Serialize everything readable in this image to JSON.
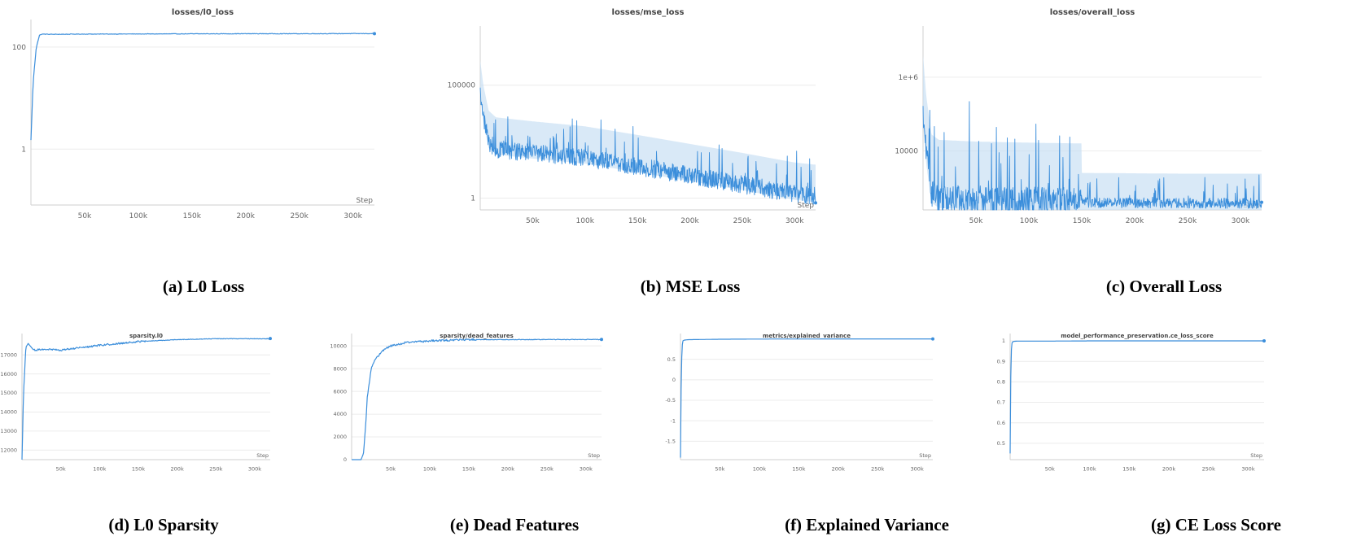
{
  "colors": {
    "line": "#3b8edb",
    "band": "#c9dff4",
    "axis": "#cfcfcf",
    "tick_text": "#666666"
  },
  "x_label": "Step",
  "x_ticks": [
    "50k",
    "100k",
    "150k",
    "200k",
    "250k",
    "300k"
  ],
  "captions": [
    "(a) L0 Loss",
    "(b) MSE Loss",
    "(c) Overall Loss",
    "(d) L0 Sparsity",
    "(e) Dead Features",
    "(f) Explained Variance",
    "(g) CE Loss Score"
  ],
  "chart_data": [
    {
      "type": "line",
      "title": "losses/l0_loss",
      "xlabel": "Step",
      "xlim": [
        0,
        320000
      ],
      "yscale": "log",
      "yticks": [
        1,
        100
      ],
      "ytick_labels": [
        "1",
        "100"
      ],
      "ylim": [
        0.08,
        300
      ],
      "series": [
        {
          "x": [
            0,
            2000,
            5000,
            8000,
            10000,
            20000,
            50000,
            100000,
            150000,
            200000,
            250000,
            300000,
            320000
          ],
          "y": [
            1.5,
            20,
            100,
            170,
            180,
            178,
            180,
            181,
            182,
            183,
            183,
            184,
            184
          ]
        }
      ]
    },
    {
      "type": "line",
      "title": "losses/mse_loss",
      "xlabel": "Step",
      "xlim": [
        0,
        320000
      ],
      "yscale": "log",
      "yticks": [
        1,
        100000
      ],
      "ytick_labels": [
        "1",
        "100000"
      ],
      "ylim": [
        0.3,
        30000000
      ],
      "band": true,
      "noisy": true,
      "series": [
        {
          "x": [
            0,
            3000,
            8000,
            15000,
            50000,
            100000,
            150000,
            200000,
            250000,
            300000,
            320000
          ],
          "y": [
            50000,
            4000,
            300,
            150,
            100,
            60,
            25,
            10,
            4,
            1.5,
            1.2
          ]
        }
      ]
    },
    {
      "type": "line",
      "title": "losses/overall_loss",
      "xlabel": "Step",
      "xlim": [
        0,
        320000
      ],
      "yscale": "log",
      "yticks": [
        10000,
        1000000
      ],
      "ytick_labels": [
        "10000",
        "1e+6"
      ],
      "ylim": [
        250,
        20000000
      ],
      "band": true,
      "noisy": true,
      "series": [
        {
          "x": [
            0,
            3000,
            8000,
            15000,
            50000,
            100000,
            150000,
            200000,
            250000,
            300000,
            320000
          ],
          "y": [
            100000,
            8000,
            700,
            500,
            450,
            420,
            400,
            390,
            380,
            380,
            380
          ]
        }
      ]
    },
    {
      "type": "line",
      "title": "sparsity.l0",
      "xlabel": "Step",
      "xlim": [
        0,
        320000
      ],
      "yscale": "linear",
      "yticks": [
        12000,
        13000,
        14000,
        15000,
        16000,
        17000
      ],
      "ytick_labels": [
        "12000",
        "13000",
        "14000",
        "15000",
        "16000",
        "17000"
      ],
      "ylim": [
        11500,
        17950
      ],
      "series": [
        {
          "x": [
            0,
            2000,
            5000,
            8000,
            15000,
            30000,
            50000,
            70000,
            100000,
            150000,
            200000,
            250000,
            300000,
            320000
          ],
          "y": [
            11500,
            15000,
            17400,
            17600,
            17250,
            17300,
            17250,
            17350,
            17500,
            17700,
            17800,
            17850,
            17850,
            17850
          ]
        }
      ]
    },
    {
      "type": "line",
      "title": "sparsity/dead_features",
      "xlabel": "Step",
      "xlim": [
        0,
        320000
      ],
      "yscale": "linear",
      "yticks": [
        0,
        2000,
        4000,
        6000,
        8000,
        10000
      ],
      "ytick_labels": [
        "0",
        "2000",
        "4000",
        "6000",
        "8000",
        "10000"
      ],
      "ylim": [
        0,
        10800
      ],
      "series": [
        {
          "x": [
            0,
            12000,
            15000,
            18000,
            20000,
            25000,
            30000,
            40000,
            50000,
            70000,
            100000,
            150000,
            200000,
            250000,
            300000,
            320000
          ],
          "y": [
            0,
            0,
            500,
            3000,
            5500,
            8000,
            8800,
            9600,
            10000,
            10300,
            10450,
            10550,
            10550,
            10560,
            10560,
            10560
          ]
        }
      ]
    },
    {
      "type": "line",
      "title": "metrics/explained_variance",
      "xlabel": "Step",
      "xlim": [
        0,
        320000
      ],
      "yscale": "linear",
      "yticks": [
        -1.5,
        -1,
        -0.5,
        0,
        0.5
      ],
      "ytick_labels": [
        "-1.5",
        "-1",
        "-0.5",
        "0",
        "0.5"
      ],
      "ylim": [
        -1.95,
        1.05
      ],
      "series": [
        {
          "x": [
            0,
            1000,
            2000,
            3000,
            5000,
            10000,
            50000,
            100000,
            200000,
            300000,
            320000
          ],
          "y": [
            -1.9,
            0.2,
            0.8,
            0.95,
            0.97,
            0.98,
            0.99,
            0.995,
            0.998,
            0.999,
            0.999
          ]
        }
      ]
    },
    {
      "type": "line",
      "title": "model_performance_preservation.ce_loss_score",
      "xlabel": "Step",
      "xlim": [
        0,
        320000
      ],
      "yscale": "linear",
      "yticks": [
        0.5,
        0.6,
        0.7,
        0.8,
        0.9,
        1
      ],
      "ytick_labels": [
        "0.5",
        "0.6",
        "0.7",
        "0.8",
        "0.9",
        "1"
      ],
      "ylim": [
        0.42,
        1.02
      ],
      "series": [
        {
          "x": [
            0,
            1000,
            2000,
            3000,
            5000,
            10000,
            50000,
            100000,
            200000,
            300000,
            320000
          ],
          "y": [
            0.45,
            0.92,
            0.985,
            0.995,
            0.998,
            0.999,
            0.999,
            1,
            1,
            1,
            1
          ]
        }
      ]
    }
  ]
}
